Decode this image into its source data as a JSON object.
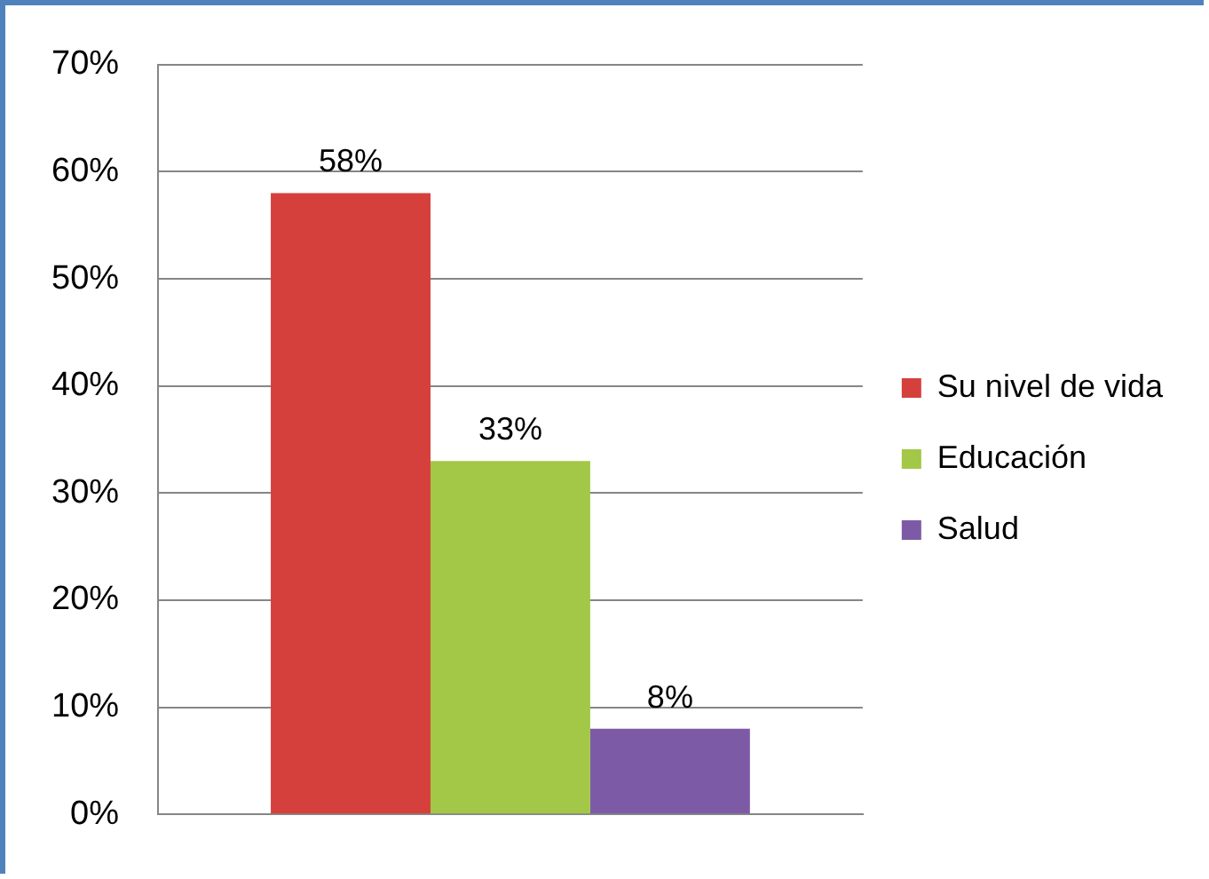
{
  "chart_data": {
    "type": "bar",
    "categories": [
      null
    ],
    "series": [
      {
        "name": "Su nivel de vida",
        "color": "#d5403c",
        "values": [
          58
        ],
        "value_labels": [
          "58%"
        ]
      },
      {
        "name": "Educación",
        "color": "#a3c746",
        "values": [
          33
        ],
        "value_labels": [
          "33%"
        ]
      },
      {
        "name": "Salud",
        "color": "#7d5aa6",
        "values": [
          8
        ],
        "value_labels": [
          "8%"
        ]
      }
    ],
    "ylim": [
      0,
      70
    ],
    "yticks": [
      {
        "value": 0,
        "label": "0%"
      },
      {
        "value": 10,
        "label": "10%"
      },
      {
        "value": 20,
        "label": "20%"
      },
      {
        "value": 30,
        "label": "30%"
      },
      {
        "value": 40,
        "label": "40%"
      },
      {
        "value": 50,
        "label": "50%"
      },
      {
        "value": 60,
        "label": "60%"
      },
      {
        "value": 70,
        "label": "70%"
      }
    ],
    "grid": "y",
    "legend": "right"
  }
}
